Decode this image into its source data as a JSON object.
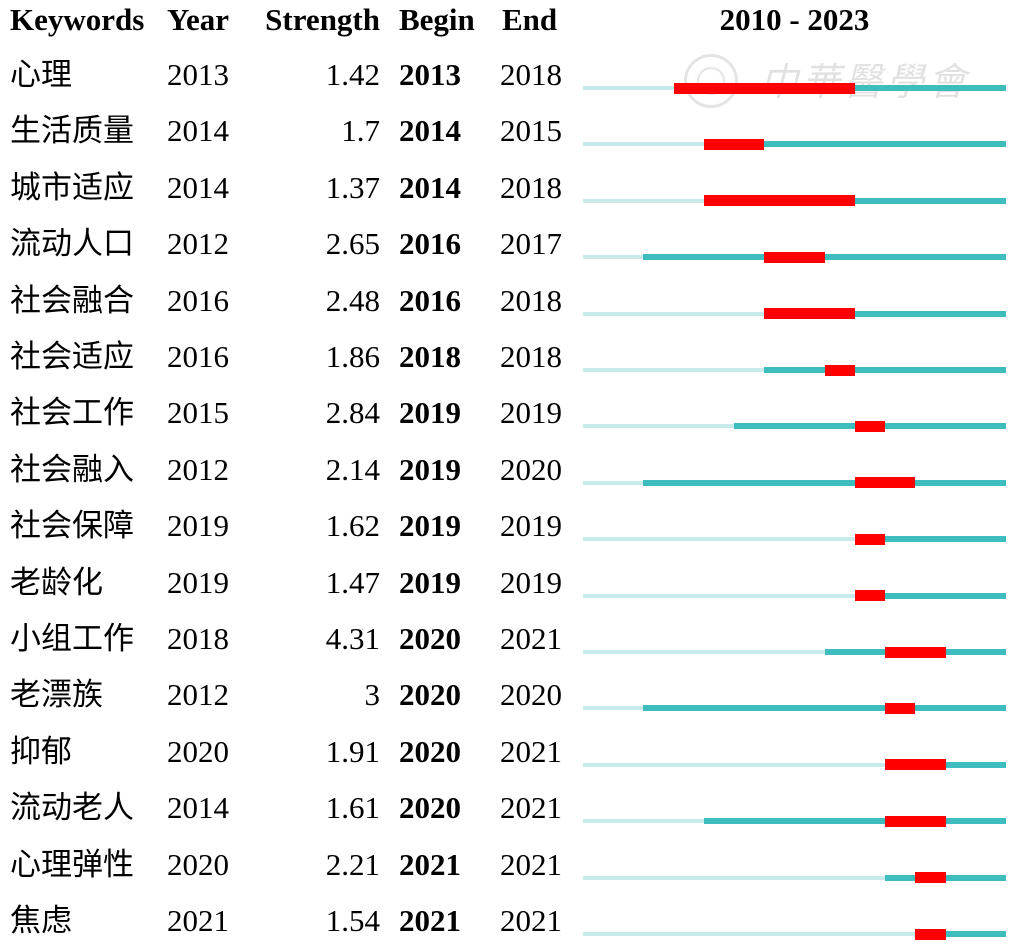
{
  "chart_data": {
    "type": "table",
    "columns": [
      "Keywords",
      "Year",
      "Strength",
      "Begin",
      "End"
    ],
    "timeline": {
      "label": "2010 - 2023",
      "start": 2010,
      "end": 2023
    },
    "colors": {
      "before_first_year": "#c8eaea",
      "active_years": "#3dbdbd",
      "burst_years": "#ff0000"
    },
    "rows": [
      {
        "keyword": "心理",
        "year": 2013,
        "strength": 1.42,
        "begin": 2013,
        "end": 2018
      },
      {
        "keyword": "生活质量",
        "year": 2014,
        "strength": 1.7,
        "begin": 2014,
        "end": 2015
      },
      {
        "keyword": "城市适应",
        "year": 2014,
        "strength": 1.37,
        "begin": 2014,
        "end": 2018
      },
      {
        "keyword": "流动人口",
        "year": 2012,
        "strength": 2.65,
        "begin": 2016,
        "end": 2017
      },
      {
        "keyword": "社会融合",
        "year": 2016,
        "strength": 2.48,
        "begin": 2016,
        "end": 2018
      },
      {
        "keyword": "社会适应",
        "year": 2016,
        "strength": 1.86,
        "begin": 2018,
        "end": 2018
      },
      {
        "keyword": "社会工作",
        "year": 2015,
        "strength": 2.84,
        "begin": 2019,
        "end": 2019
      },
      {
        "keyword": "社会融入",
        "year": 2012,
        "strength": 2.14,
        "begin": 2019,
        "end": 2020
      },
      {
        "keyword": "社会保障",
        "year": 2019,
        "strength": 1.62,
        "begin": 2019,
        "end": 2019
      },
      {
        "keyword": "老龄化",
        "year": 2019,
        "strength": 1.47,
        "begin": 2019,
        "end": 2019
      },
      {
        "keyword": "小组工作",
        "year": 2018,
        "strength": 4.31,
        "begin": 2020,
        "end": 2021
      },
      {
        "keyword": "老漂族",
        "year": 2012,
        "strength": 3,
        "begin": 2020,
        "end": 2020
      },
      {
        "keyword": "抑郁",
        "year": 2020,
        "strength": 1.91,
        "begin": 2020,
        "end": 2021
      },
      {
        "keyword": "流动老人",
        "year": 2014,
        "strength": 1.61,
        "begin": 2020,
        "end": 2021
      },
      {
        "keyword": "心理弹性",
        "year": 2020,
        "strength": 2.21,
        "begin": 2021,
        "end": 2021
      },
      {
        "keyword": "焦虑",
        "year": 2021,
        "strength": 1.54,
        "begin": 2021,
        "end": 2021
      }
    ]
  },
  "watermark": {
    "text": "中華醫學會"
  }
}
